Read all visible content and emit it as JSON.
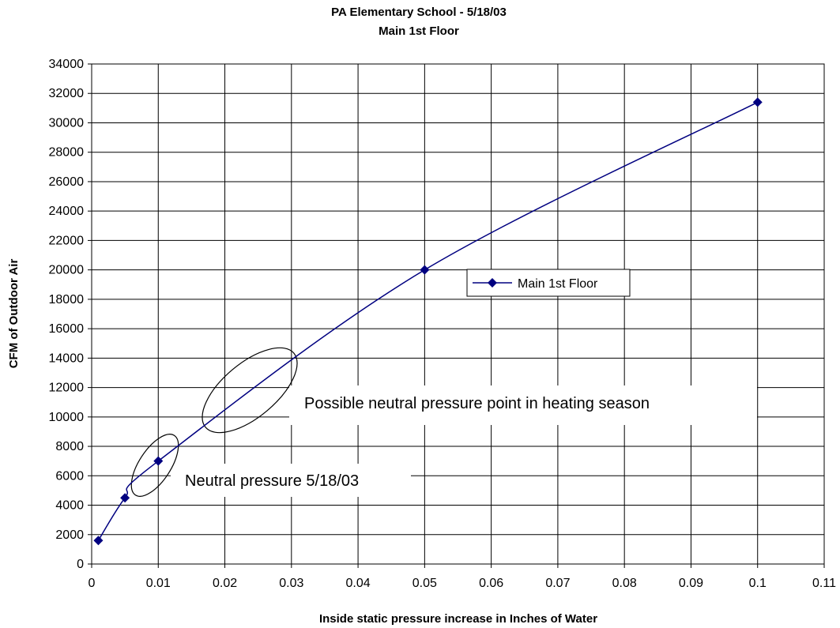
{
  "chart_data": {
    "type": "scatter",
    "title": "PA Elementary School -   5/18/03",
    "subtitle": "Main 1st Floor",
    "xlabel": "Inside static pressure increase in Inches of Water",
    "ylabel": "CFM of Outdoor Air",
    "xlim": [
      0,
      0.11
    ],
    "ylim": [
      0,
      34000
    ],
    "x_ticks": [
      "0",
      "0.01",
      "0.02",
      "0.03",
      "0.04",
      "0.05",
      "0.06",
      "0.07",
      "0.08",
      "0.09",
      "0.1",
      "0.11"
    ],
    "y_ticks": [
      "0",
      "2000",
      "4000",
      "6000",
      "8000",
      "10000",
      "12000",
      "14000",
      "16000",
      "18000",
      "20000",
      "22000",
      "24000",
      "26000",
      "28000",
      "30000",
      "32000",
      "34000"
    ],
    "grid": true,
    "legend_position": "right-center",
    "series": [
      {
        "name": "Main 1st Floor",
        "color": "#000080",
        "marker": "diamond",
        "line": "smooth",
        "x": [
          0.001,
          0.005,
          0.01,
          0.05,
          0.1
        ],
        "y": [
          1600,
          4500,
          7000,
          20000,
          31400
        ]
      }
    ],
    "annotations": [
      {
        "text": "Possible neutral pressure point in heating season",
        "x": 0.024,
        "y": 12000
      },
      {
        "text": "Neutral pressure  5/18/03",
        "x": 0.0095,
        "y": 7000
      }
    ]
  }
}
